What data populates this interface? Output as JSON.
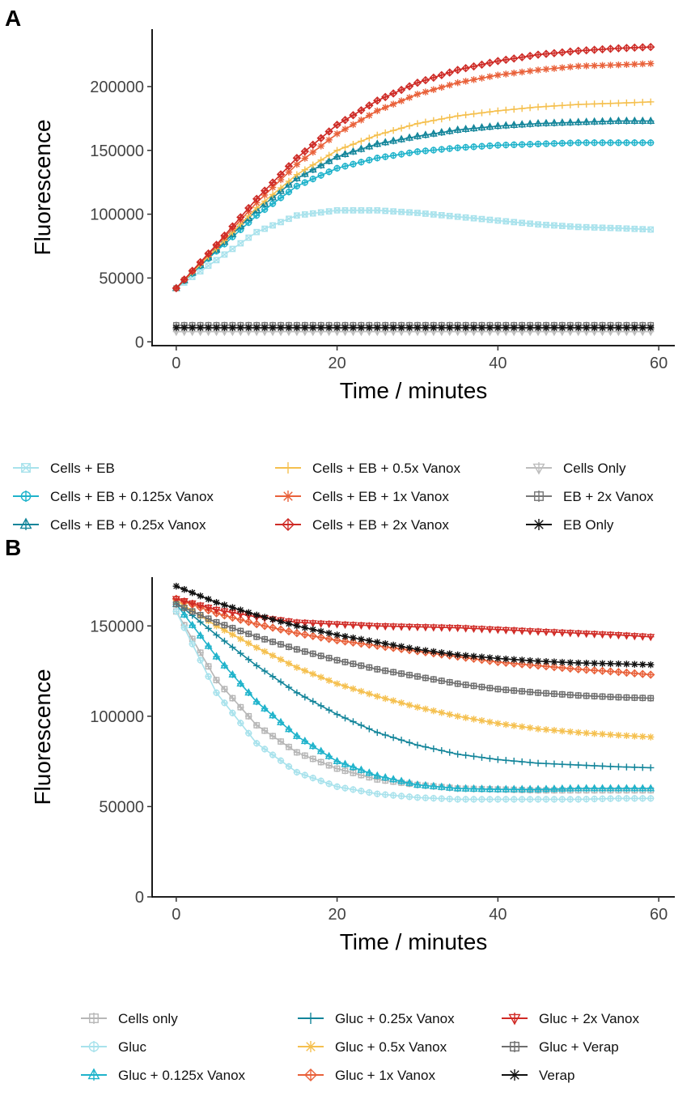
{
  "chart_data": [
    {
      "panel": "A",
      "type": "line",
      "xlabel": "Time / minutes",
      "ylabel": "Fluorescence",
      "xlim": [
        -3,
        62
      ],
      "ylim": [
        -3000,
        245000
      ],
      "xticks": [
        0,
        20,
        40,
        60
      ],
      "yticks": [
        0,
        50000,
        100000,
        150000,
        200000
      ],
      "ytick_labels": [
        "0",
        "50000",
        "100000",
        "150000",
        "200000"
      ],
      "legend_position": "bottom",
      "series": [
        {
          "name": "Cells + EB",
          "color": "#A8E2EC",
          "marker": "square-x",
          "x": [
            0,
            5,
            10,
            15,
            20,
            25,
            30,
            35,
            40,
            45,
            50,
            55,
            59
          ],
          "y": [
            42000,
            64000,
            86000,
            99000,
            103000,
            103000,
            101000,
            98000,
            95000,
            92000,
            90000,
            89000,
            88000
          ]
        },
        {
          "name": "Cells + EB + 0.125x Vanox",
          "color": "#1FB3CB",
          "marker": "circle-plus",
          "x": [
            0,
            5,
            10,
            15,
            20,
            25,
            30,
            35,
            40,
            45,
            50,
            55,
            59
          ],
          "y": [
            42000,
            71000,
            99000,
            122000,
            136000,
            144000,
            149000,
            152000,
            154000,
            155000,
            156000,
            156000,
            156000
          ]
        },
        {
          "name": "Cells + EB + 0.25x Vanox",
          "color": "#13859A",
          "marker": "triangle-plus",
          "x": [
            0,
            5,
            10,
            15,
            20,
            25,
            30,
            35,
            40,
            45,
            50,
            55,
            59
          ],
          "y": [
            42000,
            72000,
            103000,
            128000,
            145000,
            155000,
            161000,
            166000,
            169000,
            171000,
            172000,
            173000,
            173000
          ]
        },
        {
          "name": "Cells + EB + 0.5x Vanox",
          "color": "#F5C04F",
          "marker": "plus",
          "x": [
            0,
            5,
            10,
            15,
            20,
            25,
            30,
            35,
            40,
            45,
            50,
            55,
            59
          ],
          "y": [
            42000,
            73000,
            105000,
            131000,
            150000,
            162000,
            171000,
            177000,
            181000,
            184000,
            186000,
            187000,
            188000
          ]
        },
        {
          "name": "Cells + EB + 1x Vanox",
          "color": "#E9613A",
          "marker": "asterisk",
          "x": [
            0,
            5,
            10,
            15,
            20,
            25,
            30,
            35,
            40,
            45,
            50,
            55,
            59
          ],
          "y": [
            42000,
            75000,
            109000,
            139000,
            163000,
            181000,
            194000,
            203000,
            209000,
            213000,
            216000,
            217000,
            218000
          ]
        },
        {
          "name": "Cells + EB + 2x Vanox",
          "color": "#CE2B26",
          "marker": "diamond-plus",
          "x": [
            0,
            5,
            10,
            15,
            20,
            25,
            30,
            35,
            40,
            45,
            50,
            55,
            59
          ],
          "y": [
            42000,
            76000,
            112000,
            144000,
            170000,
            189000,
            203000,
            213000,
            220000,
            225000,
            228000,
            230000,
            231000
          ]
        },
        {
          "name": "Cells Only",
          "color": "#BDBDBD",
          "marker": "triangle-down-plus",
          "x": [
            0,
            30,
            59
          ],
          "y": [
            8000,
            8000,
            8000
          ]
        },
        {
          "name": "EB + 2x Vanox",
          "color": "#777777",
          "marker": "square-plus",
          "x": [
            0,
            30,
            59
          ],
          "y": [
            13000,
            13000,
            13000
          ]
        },
        {
          "name": "EB Only",
          "color": "#111111",
          "marker": "star",
          "x": [
            0,
            30,
            59
          ],
          "y": [
            11000,
            11000,
            11000
          ]
        }
      ]
    },
    {
      "panel": "B",
      "type": "line",
      "xlabel": "Time / minutes",
      "ylabel": "Fluorescence",
      "xlim": [
        -3,
        62
      ],
      "ylim": [
        0,
        177000
      ],
      "xticks": [
        0,
        20,
        40,
        60
      ],
      "yticks": [
        0,
        50000,
        100000,
        150000
      ],
      "ytick_labels": [
        "0",
        "50000",
        "100000",
        "150000"
      ],
      "legend_position": "bottom",
      "series": [
        {
          "name": "Cells only",
          "color": "#B7B7B7",
          "marker": "square-plus",
          "x": [
            0,
            5,
            10,
            15,
            20,
            25,
            30,
            35,
            40,
            45,
            50,
            55,
            59
          ],
          "y": [
            158000,
            120000,
            95000,
            80000,
            71000,
            65000,
            62000,
            60000,
            59500,
            59000,
            59000,
            59000,
            59000
          ]
        },
        {
          "name": "Gluc",
          "color": "#A8E2EC",
          "marker": "circle-plus",
          "x": [
            0,
            5,
            10,
            15,
            20,
            25,
            30,
            35,
            40,
            45,
            50,
            55,
            59
          ],
          "y": [
            158000,
            113000,
            85000,
            69000,
            61000,
            57000,
            55000,
            54000,
            54000,
            54000,
            54000,
            54500,
            54500
          ]
        },
        {
          "name": "Gluc + 0.125x Vanox",
          "color": "#1FB3CB",
          "marker": "triangle-plus",
          "x": [
            0,
            5,
            10,
            15,
            20,
            25,
            30,
            35,
            40,
            45,
            50,
            55,
            59
          ],
          "y": [
            162000,
            133000,
            108000,
            89000,
            75000,
            67000,
            62000,
            60000,
            59500,
            59500,
            60000,
            60000,
            60000
          ]
        },
        {
          "name": "Gluc + 0.25x Vanox",
          "color": "#13859A",
          "marker": "plus",
          "x": [
            0,
            5,
            10,
            15,
            20,
            25,
            30,
            35,
            40,
            45,
            50,
            55,
            59
          ],
          "y": [
            163000,
            145000,
            128000,
            113000,
            101000,
            91000,
            84000,
            79000,
            76000,
            74000,
            73000,
            72000,
            71500
          ]
        },
        {
          "name": "Gluc + 0.5x Vanox",
          "color": "#F5C04F",
          "marker": "asterisk",
          "x": [
            0,
            5,
            10,
            15,
            20,
            25,
            30,
            35,
            40,
            45,
            50,
            55,
            59
          ],
          "y": [
            164000,
            150000,
            138000,
            127000,
            118000,
            111000,
            105000,
            100000,
            96000,
            93000,
            91000,
            89500,
            88500
          ]
        },
        {
          "name": "Gluc + 1x Vanox",
          "color": "#E9613A",
          "marker": "diamond-plus",
          "x": [
            0,
            5,
            10,
            15,
            20,
            25,
            30,
            35,
            40,
            45,
            50,
            55,
            59
          ],
          "y": [
            165000,
            157000,
            151000,
            146000,
            142000,
            139000,
            136000,
            133000,
            130000,
            128000,
            126000,
            124500,
            123000
          ]
        },
        {
          "name": "Gluc + 2x Vanox",
          "color": "#D02A25",
          "marker": "triangle-down-plus",
          "x": [
            0,
            5,
            10,
            15,
            20,
            25,
            30,
            35,
            40,
            45,
            50,
            55,
            59
          ],
          "y": [
            165000,
            159000,
            155000,
            152000,
            151000,
            150000,
            149500,
            149000,
            148000,
            147000,
            146000,
            145000,
            144000
          ]
        },
        {
          "name": "Gluc + Verap",
          "color": "#6E6E6E",
          "marker": "square-plus",
          "x": [
            0,
            5,
            10,
            15,
            20,
            25,
            30,
            35,
            40,
            45,
            50,
            55,
            59
          ],
          "y": [
            162000,
            152000,
            144000,
            137000,
            131000,
            126000,
            122000,
            118000,
            115000,
            113000,
            111500,
            110500,
            110000
          ]
        },
        {
          "name": "Verap",
          "color": "#111111",
          "marker": "star",
          "x": [
            0,
            5,
            10,
            15,
            20,
            25,
            30,
            35,
            40,
            45,
            50,
            55,
            59
          ],
          "y": [
            172000,
            163000,
            156000,
            150000,
            145000,
            141000,
            137000,
            134000,
            132000,
            130500,
            129500,
            129000,
            128500
          ]
        }
      ]
    }
  ]
}
